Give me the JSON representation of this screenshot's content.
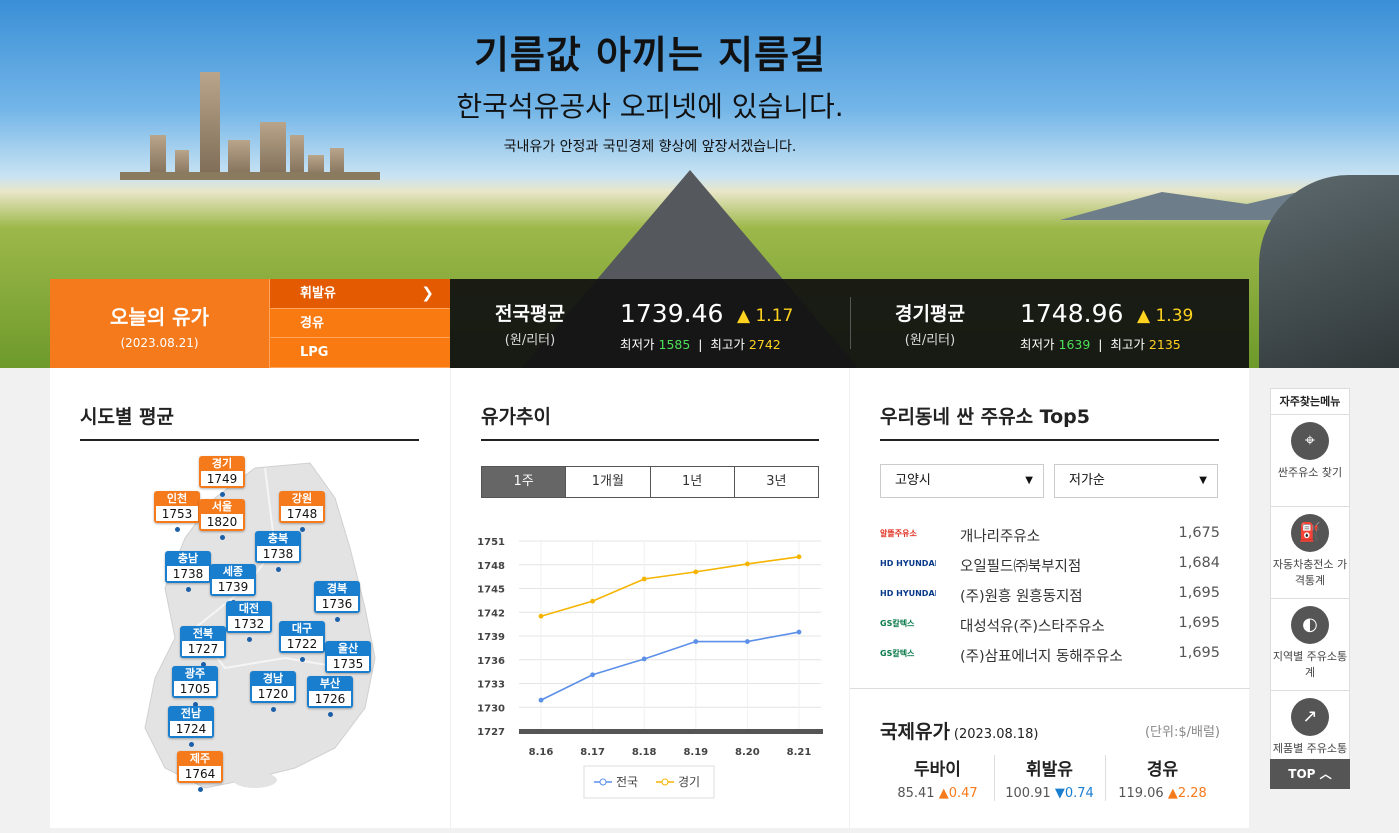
{
  "hero": {
    "title": "기름값 아끼는 지름길",
    "subtitle": "한국석유공사 오피넷에 있습니다.",
    "tagline": "국내유가 안정과 국민경제 향상에 앞장서겠습니다."
  },
  "today": {
    "title": "오늘의 유가",
    "date": "(2023.08.21)"
  },
  "fuels": [
    "휘발유",
    "경유",
    "LPG"
  ],
  "national": {
    "label": "전국평균",
    "unit": "(원/리터)",
    "value": "1739.46",
    "change": "▲ 1.17",
    "min_label": "최저가",
    "min": "1585",
    "max_label": "최고가",
    "max": "2742"
  },
  "gyeonggi": {
    "label": "경기평균",
    "unit": "(원/리터)",
    "value": "1748.96",
    "change": "▲ 1.39",
    "min_label": "최저가",
    "min": "1639",
    "max_label": "최고가",
    "max": "2135"
  },
  "regions_panel": {
    "title": "시도별 평균",
    "regions": [
      {
        "name": "경기",
        "value": "1749",
        "color": "orange"
      },
      {
        "name": "인천",
        "value": "1753",
        "color": "orange"
      },
      {
        "name": "서울",
        "value": "1820",
        "color": "orange"
      },
      {
        "name": "강원",
        "value": "1748",
        "color": "orange"
      },
      {
        "name": "충북",
        "value": "1738",
        "color": "blue"
      },
      {
        "name": "충남",
        "value": "1738",
        "color": "blue"
      },
      {
        "name": "세종",
        "value": "1739",
        "color": "blue"
      },
      {
        "name": "경북",
        "value": "1736",
        "color": "blue"
      },
      {
        "name": "대전",
        "value": "1732",
        "color": "blue"
      },
      {
        "name": "전북",
        "value": "1727",
        "color": "blue"
      },
      {
        "name": "대구",
        "value": "1722",
        "color": "blue"
      },
      {
        "name": "울산",
        "value": "1735",
        "color": "blue"
      },
      {
        "name": "광주",
        "value": "1705",
        "color": "blue"
      },
      {
        "name": "경남",
        "value": "1720",
        "color": "blue"
      },
      {
        "name": "부산",
        "value": "1726",
        "color": "blue"
      },
      {
        "name": "전남",
        "value": "1724",
        "color": "blue"
      },
      {
        "name": "제주",
        "value": "1764",
        "color": "orange"
      }
    ]
  },
  "trend_panel": {
    "title": "유가추이",
    "tabs": [
      "1주",
      "1개월",
      "1년",
      "3년"
    ]
  },
  "chart_data": {
    "type": "line",
    "x": [
      "8.16",
      "8.17",
      "8.18",
      "8.19",
      "8.20",
      "8.21"
    ],
    "series": [
      {
        "name": "전국",
        "values": [
          1730.9,
          1734.1,
          1736.1,
          1738.3,
          1738.3,
          1739.5
        ],
        "color": "#5b8fe8"
      },
      {
        "name": "경기",
        "values": [
          1741.5,
          1743.4,
          1746.2,
          1747.1,
          1748.1,
          1749.0
        ],
        "color": "#f5b400"
      }
    ],
    "yticks": [
      "1751",
      "1748",
      "1745",
      "1742",
      "1739",
      "1736",
      "1733",
      "1730",
      "1727"
    ],
    "ylim": [
      1727,
      1751
    ],
    "grid": true,
    "legend": "bottom"
  },
  "top5": {
    "title": "우리동네 싼 주유소 Top5",
    "city": "고양시",
    "sort": "저가순",
    "stations": [
      {
        "brand": "알뜰주유소",
        "name": "개나리주유소",
        "price": "1,675"
      },
      {
        "brand": "HD HYUNDAI OILBANK",
        "name": "오일필드㈜북부지점",
        "price": "1,684"
      },
      {
        "brand": "HD HYUNDAI OILBANK",
        "name": "(주)원흥 원흥동지점",
        "price": "1,695"
      },
      {
        "brand": "GS칼텍스",
        "name": "대성석유(주)스타주유소",
        "price": "1,695"
      },
      {
        "brand": "GS칼텍스",
        "name": "(주)삼표에너지 동해주유소",
        "price": "1,695"
      }
    ]
  },
  "intl": {
    "title": "국제유가",
    "date": "(2023.08.18)",
    "unit": "(단위:$/배럴)",
    "items": [
      {
        "name": "두바이",
        "value": "85.41",
        "change": "▲0.47"
      },
      {
        "name": "휘발유",
        "value": "100.91",
        "change": "▼0.74"
      },
      {
        "name": "경유",
        "value": "119.06",
        "change": "▲2.28"
      }
    ]
  },
  "quick": {
    "title": "자주찾는메뉴",
    "items": [
      {
        "label": "싼주유소 찾기",
        "icon": "location-pin-icon"
      },
      {
        "label": "자동차충전소 가격통계",
        "icon": "fuel-pump-icon"
      },
      {
        "label": "지역별 주유소통계",
        "icon": "korea-map-icon"
      },
      {
        "label": "제품별 주유소통계",
        "icon": "line-chart-icon"
      }
    ],
    "top": "TOP"
  }
}
